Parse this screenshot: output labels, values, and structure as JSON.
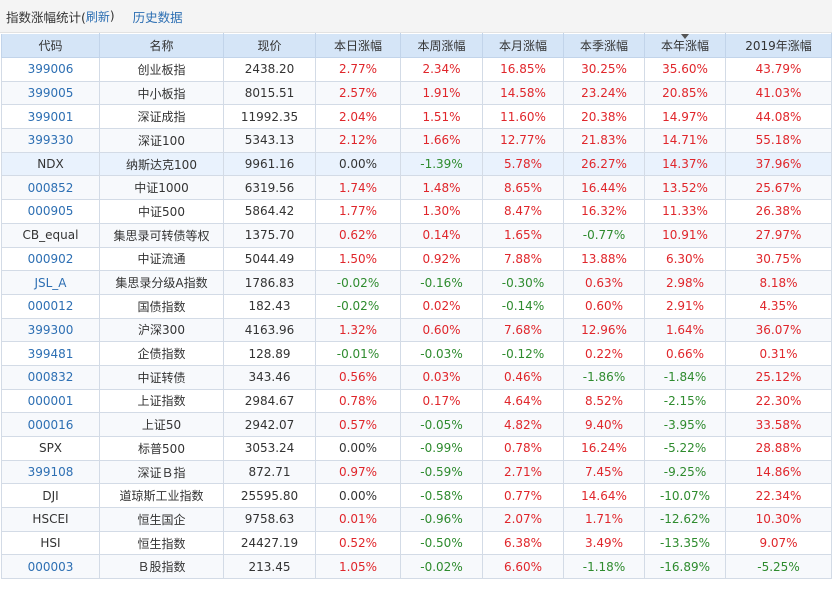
{
  "header": {
    "title": "指数涨幅统计(",
    "refresh_label": "刷新",
    "close_paren": ")",
    "history_label": "历史数据"
  },
  "table": {
    "columns": [
      "代码",
      "名称",
      "现价",
      "本日涨幅",
      "本周涨幅",
      "本月涨幅",
      "本季涨幅",
      "本年涨幅",
      "2019年涨幅"
    ],
    "sorted_column": "本年涨幅",
    "colors": {
      "up": "#e0262b",
      "down": "#2e8b2e",
      "link": "#2d6fb3",
      "header_bg": "#d5e5f7"
    },
    "rows": [
      {
        "code": "399006",
        "link": true,
        "name": "创业板指",
        "price": "2438.20",
        "day": "2.77%",
        "week": "2.34%",
        "month": "16.85%",
        "quarter": "30.25%",
        "year": "35.60%",
        "y2019": "43.79%"
      },
      {
        "code": "399005",
        "link": true,
        "name": "中小板指",
        "price": "8015.51",
        "day": "2.57%",
        "week": "1.91%",
        "month": "14.58%",
        "quarter": "23.24%",
        "year": "20.85%",
        "y2019": "41.03%"
      },
      {
        "code": "399001",
        "link": true,
        "name": "深证成指",
        "price": "11992.35",
        "day": "2.04%",
        "week": "1.51%",
        "month": "11.60%",
        "quarter": "20.38%",
        "year": "14.97%",
        "y2019": "44.08%"
      },
      {
        "code": "399330",
        "link": true,
        "name": "深证100",
        "price": "5343.13",
        "day": "2.12%",
        "week": "1.66%",
        "month": "12.77%",
        "quarter": "21.83%",
        "year": "14.71%",
        "y2019": "55.18%"
      },
      {
        "code": "NDX",
        "link": false,
        "name": "纳斯达克100",
        "price": "9961.16",
        "day": "0.00%",
        "week": "-1.39%",
        "month": "5.78%",
        "quarter": "26.27%",
        "year": "14.37%",
        "y2019": "37.96%"
      },
      {
        "code": "000852",
        "link": true,
        "name": "中证1000",
        "price": "6319.56",
        "day": "1.74%",
        "week": "1.48%",
        "month": "8.65%",
        "quarter": "16.44%",
        "year": "13.52%",
        "y2019": "25.67%"
      },
      {
        "code": "000905",
        "link": true,
        "name": "中证500",
        "price": "5864.42",
        "day": "1.77%",
        "week": "1.30%",
        "month": "8.47%",
        "quarter": "16.32%",
        "year": "11.33%",
        "y2019": "26.38%"
      },
      {
        "code": "CB_equal",
        "link": false,
        "name": "集思录可转债等权",
        "price": "1375.70",
        "day": "0.62%",
        "week": "0.14%",
        "month": "1.65%",
        "quarter": "-0.77%",
        "year": "10.91%",
        "y2019": "27.97%"
      },
      {
        "code": "000902",
        "link": true,
        "name": "中证流通",
        "price": "5044.49",
        "day": "1.50%",
        "week": "0.92%",
        "month": "7.88%",
        "quarter": "13.88%",
        "year": "6.30%",
        "y2019": "30.75%"
      },
      {
        "code": "JSL_A",
        "link": true,
        "name": "集思录分级A指数",
        "price": "1786.83",
        "day": "-0.02%",
        "week": "-0.16%",
        "month": "-0.30%",
        "quarter": "0.63%",
        "year": "2.98%",
        "y2019": "8.18%"
      },
      {
        "code": "000012",
        "link": true,
        "name": "国债指数",
        "price": "182.43",
        "day": "-0.02%",
        "week": "0.02%",
        "month": "-0.14%",
        "quarter": "0.60%",
        "year": "2.91%",
        "y2019": "4.35%"
      },
      {
        "code": "399300",
        "link": true,
        "name": "沪深300",
        "price": "4163.96",
        "day": "1.32%",
        "week": "0.60%",
        "month": "7.68%",
        "quarter": "12.96%",
        "year": "1.64%",
        "y2019": "36.07%"
      },
      {
        "code": "399481",
        "link": true,
        "name": "企债指数",
        "price": "128.89",
        "day": "-0.01%",
        "week": "-0.03%",
        "month": "-0.12%",
        "quarter": "0.22%",
        "year": "0.66%",
        "y2019": "0.31%"
      },
      {
        "code": "000832",
        "link": true,
        "name": "中证转债",
        "price": "343.46",
        "day": "0.56%",
        "week": "0.03%",
        "month": "0.46%",
        "quarter": "-1.86%",
        "year": "-1.84%",
        "y2019": "25.12%"
      },
      {
        "code": "000001",
        "link": true,
        "name": "上证指数",
        "price": "2984.67",
        "day": "0.78%",
        "week": "0.17%",
        "month": "4.64%",
        "quarter": "8.52%",
        "year": "-2.15%",
        "y2019": "22.30%"
      },
      {
        "code": "000016",
        "link": true,
        "name": "上证50",
        "price": "2942.07",
        "day": "0.57%",
        "week": "-0.05%",
        "month": "4.82%",
        "quarter": "9.40%",
        "year": "-3.95%",
        "y2019": "33.58%"
      },
      {
        "code": "SPX",
        "link": false,
        "name": "标普500",
        "price": "3053.24",
        "day": "0.00%",
        "week": "-0.99%",
        "month": "0.78%",
        "quarter": "16.24%",
        "year": "-5.22%",
        "y2019": "28.88%"
      },
      {
        "code": "399108",
        "link": true,
        "name": "深证Ｂ指",
        "price": "872.71",
        "day": "0.97%",
        "week": "-0.59%",
        "month": "2.71%",
        "quarter": "7.45%",
        "year": "-9.25%",
        "y2019": "14.86%"
      },
      {
        "code": "DJI",
        "link": false,
        "name": "道琼斯工业指数",
        "price": "25595.80",
        "day": "0.00%",
        "week": "-0.58%",
        "month": "0.77%",
        "quarter": "14.64%",
        "year": "-10.07%",
        "y2019": "22.34%"
      },
      {
        "code": "HSCEI",
        "link": false,
        "name": "恒生国企",
        "price": "9758.63",
        "day": "0.01%",
        "week": "-0.96%",
        "month": "2.07%",
        "quarter": "1.71%",
        "year": "-12.62%",
        "y2019": "10.30%"
      },
      {
        "code": "HSI",
        "link": false,
        "name": "恒生指数",
        "price": "24427.19",
        "day": "0.52%",
        "week": "-0.50%",
        "month": "6.38%",
        "quarter": "3.49%",
        "year": "-13.35%",
        "y2019": "9.07%"
      },
      {
        "code": "000003",
        "link": true,
        "name": "Ｂ股指数",
        "price": "213.45",
        "day": "1.05%",
        "week": "-0.02%",
        "month": "6.60%",
        "quarter": "-1.18%",
        "year": "-16.89%",
        "y2019": "-5.25%"
      }
    ]
  }
}
